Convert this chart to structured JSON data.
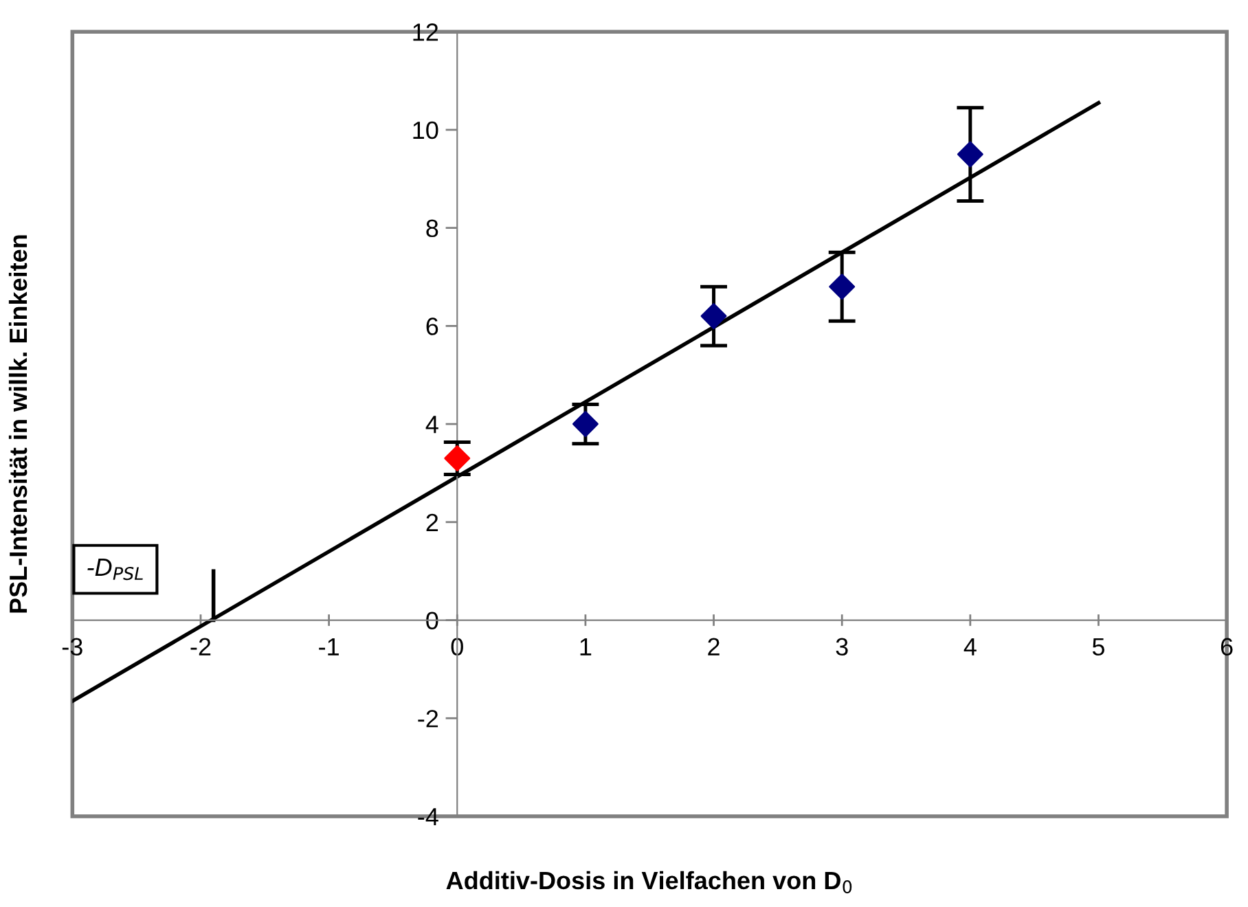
{
  "chart_data": {
    "type": "scatter",
    "xlabel": "Additiv-Dosis in Vielfachen von D$_{0}$",
    "ylabel": "PSL-Intensität in willk. Einkeiten",
    "series": [
      {
        "color": "#ff0000",
        "x": [
          0
        ],
        "values": [
          3.3
        ],
        "errors": [
          0.33
        ],
        "marker": "diamond"
      },
      {
        "color": "#000080",
        "x": [
          1,
          2,
          3,
          4
        ],
        "values": [
          4.0,
          6.2,
          6.8,
          9.5
        ],
        "errors": [
          0.4,
          0.6,
          0.7,
          0.95
        ],
        "marker": "diamond"
      },
      {
        "type": "line",
        "color": "#000000",
        "x": [
          -3,
          5
        ],
        "values": [
          -1.65,
          10.55
        ],
        "marker": "none"
      },
      {
        "type": "line",
        "color": "#000000",
        "x": [
          -1.9,
          -1.9
        ],
        "values": [
          0,
          1
        ],
        "marker": "none"
      }
    ],
    "annotations": [
      "-D$_{PSL}$"
    ],
    "xlim": [
      -3,
      6
    ],
    "ylim": [
      -4,
      12
    ],
    "xticks": [
      -3,
      -2,
      -1,
      0,
      1,
      2,
      3,
      4,
      5,
      6
    ],
    "yticks": [
      -4,
      -2,
      0,
      2,
      4,
      6,
      8,
      10,
      12
    ],
    "grid": false,
    "legend": false
  }
}
